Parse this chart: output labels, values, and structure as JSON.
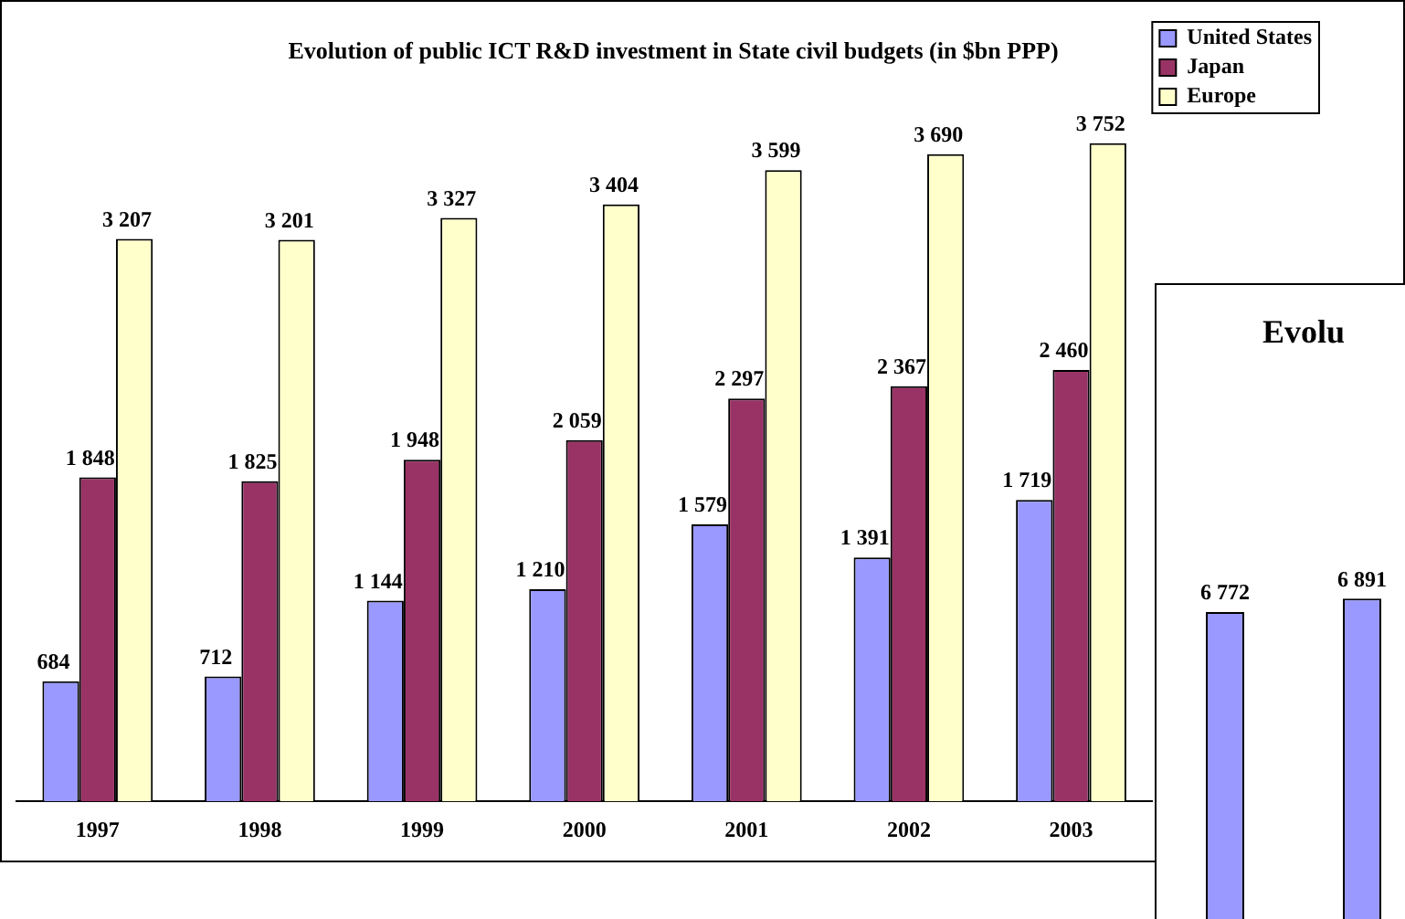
{
  "chart_data": [
    {
      "type": "bar",
      "title": "Evolution of public ICT R&D investment in State civil budgets (in $bn PPP)",
      "categories": [
        "1997",
        "1998",
        "1999",
        "2000",
        "2001",
        "2002",
        "2003"
      ],
      "series": [
        {
          "name": "United States",
          "color": "#9999ff",
          "values": [
            684,
            712,
            1144,
            1210,
            1579,
            1391,
            1719
          ]
        },
        {
          "name": "Japan",
          "color": "#993366",
          "values": [
            1848,
            1825,
            1948,
            2059,
            2297,
            2367,
            2460
          ]
        },
        {
          "name": "Europe",
          "color": "#ffffcc",
          "values": [
            3207,
            3201,
            3327,
            3404,
            3599,
            3690,
            3752
          ]
        }
      ],
      "data_labels": true,
      "legend": "top right",
      "tick_labels": "x",
      "grid": false
    },
    {
      "type": "bar",
      "title": "Evolu",
      "categories": [
        null,
        null
      ],
      "values": [
        6772,
        6891
      ],
      "color": "#9999ff",
      "data_labels": true,
      "tick_labels": false,
      "grid": false
    }
  ]
}
